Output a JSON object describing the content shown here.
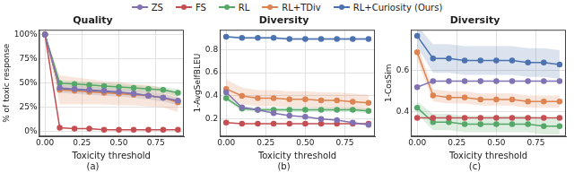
{
  "chart_data": [
    {
      "type": "line",
      "title": "Quality",
      "subtitle": "(a)",
      "xlabel": "Toxicity threshold",
      "ylabel": "% of toxic response",
      "legend": "top",
      "grid": true,
      "x": [
        0,
        0.1,
        0.2,
        0.3,
        0.4,
        0.5,
        0.6,
        0.7,
        0.8,
        0.9
      ],
      "xlim": [
        -0.04,
        0.94
      ],
      "xticks": [
        {
          "value": 0,
          "label": "0.00"
        },
        {
          "value": 0.25,
          "label": "0.25"
        },
        {
          "value": 0.5,
          "label": "0.50"
        },
        {
          "value": 0.75,
          "label": "0.75"
        }
      ],
      "ylim": [
        -5,
        105
      ],
      "yticks": [
        {
          "value": 0,
          "label": "0%"
        },
        {
          "value": 25,
          "label": "25%"
        },
        {
          "value": 50,
          "label": "50%"
        },
        {
          "value": 75,
          "label": "75%"
        },
        {
          "value": 100,
          "label": "100%"
        }
      ],
      "series": [
        {
          "name": "ZS",
          "color": "#8172b3",
          "marker": "circle",
          "values": [
            100,
            45,
            44,
            43,
            42,
            41,
            39,
            37,
            35,
            32
          ]
        },
        {
          "name": "FS",
          "color": "#c44e52",
          "marker": "circle",
          "values": [
            100,
            4,
            3,
            3,
            2,
            2,
            2,
            2,
            2,
            2
          ]
        },
        {
          "name": "RL",
          "color": "#55a868",
          "marker": "circle",
          "values": [
            100,
            50,
            49,
            48,
            47,
            46,
            45,
            44,
            43,
            40
          ],
          "error": [
            0,
            3,
            3,
            3,
            3,
            3,
            3,
            3,
            3,
            4
          ]
        },
        {
          "name": "RL+TDiv",
          "color": "#dd8452",
          "marker": "circle",
          "values": [
            100,
            43,
            42,
            41,
            40,
            39,
            38,
            37,
            35,
            30
          ],
          "error": [
            0,
            15,
            14,
            13,
            12,
            12,
            11,
            11,
            10,
            10
          ]
        },
        {
          "name": "RL+Curiosity (Ours)",
          "color": "#4c72b0",
          "marker": "circle",
          "values": [
            100,
            44,
            43,
            42,
            41,
            40,
            39,
            37,
            35,
            31
          ],
          "error": [
            0,
            4,
            4,
            4,
            4,
            4,
            4,
            4,
            4,
            4
          ]
        }
      ]
    },
    {
      "type": "line",
      "title": "Diversity",
      "subtitle": "(b)",
      "xlabel": "Toxicity threshold",
      "ylabel": "1-AvgSelfBLEU",
      "grid": true,
      "x": [
        0,
        0.1,
        0.2,
        0.3,
        0.4,
        0.5,
        0.6,
        0.7,
        0.8,
        0.9
      ],
      "xlim": [
        -0.04,
        0.94
      ],
      "xticks": [
        {
          "value": 0,
          "label": "0.00"
        },
        {
          "value": 0.25,
          "label": "0.25"
        },
        {
          "value": 0.5,
          "label": "0.50"
        },
        {
          "value": 0.75,
          "label": "0.75"
        }
      ],
      "ylim": [
        0.05,
        0.97
      ],
      "yticks": [
        0.2,
        0.4,
        0.6,
        0.8
      ],
      "series": [
        {
          "name": "ZS",
          "color": "#8172b3",
          "marker": "circle",
          "values": [
            0.43,
            0.3,
            0.28,
            0.25,
            0.23,
            0.22,
            0.2,
            0.19,
            0.17,
            0.15
          ]
        },
        {
          "name": "FS",
          "color": "#c44e52",
          "marker": "circle",
          "values": [
            0.17,
            0.16,
            0.16,
            0.16,
            0.16,
            0.16,
            0.16,
            0.16,
            0.16,
            0.16
          ]
        },
        {
          "name": "RL",
          "color": "#55a868",
          "marker": "circle",
          "values": [
            0.38,
            0.29,
            0.28,
            0.28,
            0.28,
            0.28,
            0.28,
            0.28,
            0.28,
            0.27
          ],
          "error": [
            0.02,
            0.02,
            0.02,
            0.02,
            0.02,
            0.02,
            0.02,
            0.02,
            0.02,
            0.02
          ]
        },
        {
          "name": "RL+TDiv",
          "color": "#dd8452",
          "marker": "circle",
          "values": [
            0.46,
            0.4,
            0.38,
            0.38,
            0.37,
            0.37,
            0.36,
            0.36,
            0.35,
            0.34
          ],
          "error": [
            0.08,
            0.07,
            0.07,
            0.07,
            0.07,
            0.07,
            0.07,
            0.07,
            0.07,
            0.07
          ]
        },
        {
          "name": "RL+Curiosity (Ours)",
          "color": "#4c72b0",
          "marker": "circle",
          "values": [
            0.91,
            0.9,
            0.9,
            0.9,
            0.89,
            0.89,
            0.89,
            0.89,
            0.89,
            0.89
          ],
          "error": [
            0.01,
            0.01,
            0.01,
            0.01,
            0.01,
            0.01,
            0.01,
            0.01,
            0.01,
            0.01
          ]
        }
      ]
    },
    {
      "type": "line",
      "title": "Diversity",
      "subtitle": "(c)",
      "xlabel": "Toxicity threshold",
      "ylabel": "1-CosSim",
      "grid": true,
      "x": [
        0,
        0.1,
        0.2,
        0.3,
        0.4,
        0.5,
        0.6,
        0.7,
        0.8,
        0.9
      ],
      "xlim": [
        -0.04,
        0.94
      ],
      "xticks": [
        {
          "value": 0,
          "label": "0.00"
        },
        {
          "value": 0.25,
          "label": "0.25"
        },
        {
          "value": 0.5,
          "label": "0.50"
        },
        {
          "value": 0.75,
          "label": "0.75"
        }
      ],
      "ylim": [
        0.28,
        0.8
      ],
      "yticks": [
        0.4,
        0.6
      ],
      "series": [
        {
          "name": "ZS",
          "color": "#8172b3",
          "marker": "circle",
          "values": [
            0.52,
            0.55,
            0.55,
            0.55,
            0.55,
            0.55,
            0.55,
            0.55,
            0.55,
            0.55
          ]
        },
        {
          "name": "FS",
          "color": "#c44e52",
          "marker": "circle",
          "values": [
            0.37,
            0.37,
            0.37,
            0.37,
            0.37,
            0.37,
            0.37,
            0.37,
            0.37,
            0.37
          ]
        },
        {
          "name": "RL",
          "color": "#55a868",
          "marker": "circle",
          "values": [
            0.42,
            0.35,
            0.35,
            0.34,
            0.34,
            0.34,
            0.34,
            0.34,
            0.33,
            0.33
          ],
          "error": [
            0.03,
            0.04,
            0.04,
            0.04,
            0.04,
            0.04,
            0.04,
            0.04,
            0.04,
            0.04
          ]
        },
        {
          "name": "RL+TDiv",
          "color": "#dd8452",
          "marker": "circle",
          "values": [
            0.69,
            0.48,
            0.47,
            0.47,
            0.46,
            0.46,
            0.46,
            0.45,
            0.45,
            0.45
          ],
          "error": [
            0.04,
            0.03,
            0.03,
            0.03,
            0.03,
            0.03,
            0.03,
            0.03,
            0.03,
            0.03
          ]
        },
        {
          "name": "RL+Curiosity (Ours)",
          "color": "#4c72b0",
          "marker": "circle",
          "values": [
            0.77,
            0.66,
            0.66,
            0.65,
            0.65,
            0.65,
            0.65,
            0.64,
            0.64,
            0.63
          ],
          "error": [
            0.05,
            0.07,
            0.07,
            0.07,
            0.07,
            0.07,
            0.07,
            0.07,
            0.07,
            0.07
          ]
        }
      ]
    }
  ]
}
